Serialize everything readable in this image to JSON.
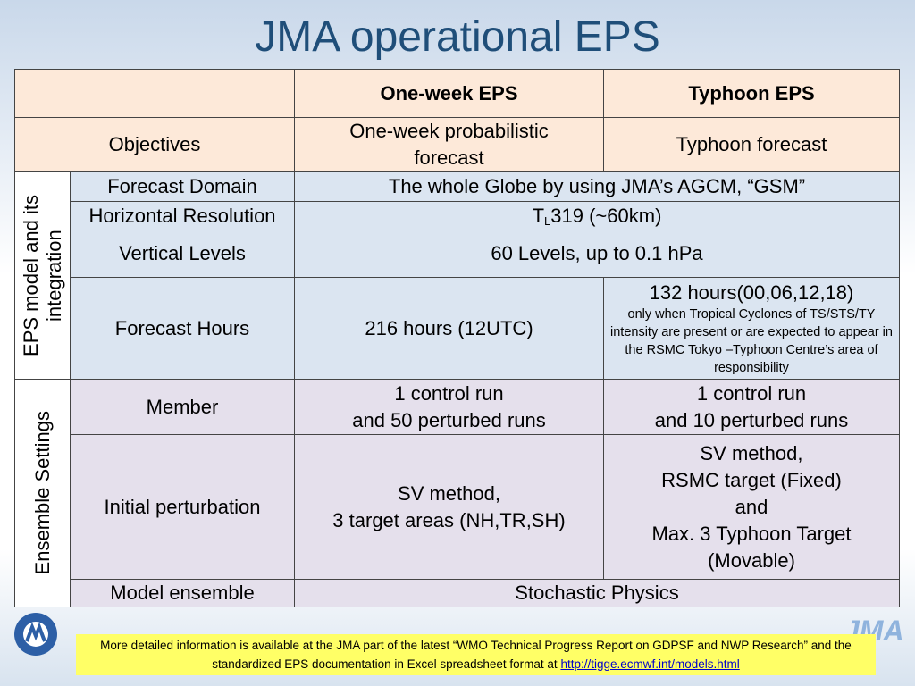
{
  "title": "JMA operational EPS",
  "table": {
    "header": [
      "One-week EPS",
      "Typhoon EPS"
    ],
    "objectives": {
      "label": "Objectives",
      "one_week": "One-week probabilistic forecast",
      "typhoon": "Typhoon forecast"
    },
    "groups": [
      {
        "label": [
          "EPS model and its",
          "integration"
        ],
        "rows": [
          {
            "label": "Forecast Domain",
            "value": "The whole Globe by using JMA’s AGCM, “GSM”"
          },
          {
            "label": "Horizontal Resolution",
            "value": {
              "main": "T",
              "sub": "L",
              "rest": "319 (~60km)"
            }
          },
          {
            "label": "Vertical Levels",
            "value": "60 Levels, up to 0.1 hPa"
          },
          {
            "label": "Forecast Hours",
            "one_week": "216 hours (12UTC)",
            "typhoon": {
              "main": "132 hours(00,06,12,18)",
              "note": "only when Tropical Cyclones of TS/STS/TY intensity are present or are expected to appear in the RSMC Tokyo –Typhoon Centre’s area of responsibility"
            }
          }
        ]
      },
      {
        "label": [
          "Ensemble Settings"
        ],
        "rows": [
          {
            "label": "Member",
            "one_week": [
              "1 control run",
              "and 50 perturbed runs"
            ],
            "typhoon": [
              "1 control run",
              "and 10 perturbed runs"
            ]
          },
          {
            "label": "Initial perturbation",
            "one_week": [
              "SV method,",
              "3 target areas (NH,TR,SH)"
            ],
            "typhoon": [
              "SV method,",
              "RSMC target (Fixed)",
              "and",
              "Max. 3 Typhoon Target",
              "(Movable)"
            ]
          },
          {
            "label": "Model ensemble",
            "value": "Stochastic Physics"
          }
        ]
      }
    ]
  },
  "footer": {
    "text": "More detailed information is available at the JMA part of the latest “WMO Technical Progress Report on GDPSF and NWP Research” and the standardized EPS documentation in Excel spreadsheet format at ",
    "link": "http://tigge.ecmwf.int/models.html"
  },
  "logo_text": "JMA"
}
